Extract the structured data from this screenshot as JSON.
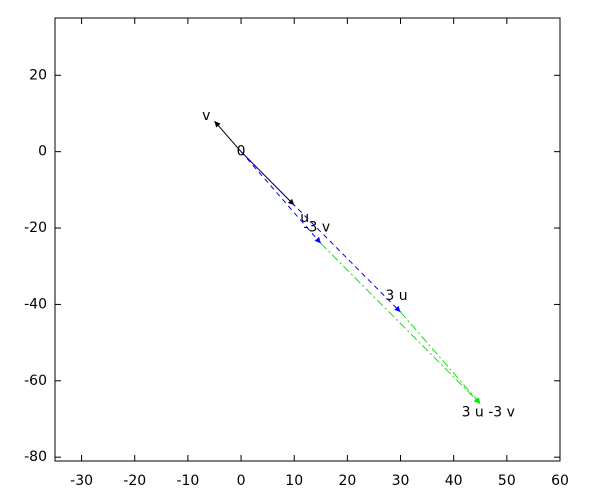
{
  "chart_data": {
    "type": "vector",
    "xlim": [
      -35,
      60
    ],
    "ylim": [
      -81,
      35
    ],
    "xticks": [
      -30,
      -20,
      -10,
      0,
      10,
      20,
      30,
      40,
      50,
      60
    ],
    "yticks": [
      -80,
      -60,
      -40,
      -20,
      0,
      20
    ],
    "origin_label": "0",
    "vectors": [
      {
        "name": "v",
        "x0": 0,
        "y0": 0,
        "x": -5,
        "y": 8,
        "color": "#000000",
        "dash": "none"
      },
      {
        "name": "u",
        "x0": 0,
        "y0": 0,
        "x": 10,
        "y": -14,
        "color": "#000000",
        "dash": "none"
      },
      {
        "name": "-3 v",
        "x0": 0,
        "y0": 0,
        "x": 15,
        "y": -24,
        "color": "#0000ff",
        "dash": "5 4"
      },
      {
        "name": "3 u",
        "x0": 0,
        "y0": 0,
        "x": 30,
        "y": -42,
        "color": "#0000ff",
        "dash": "5 4"
      },
      {
        "name": "3 u -3 v",
        "x0": 15,
        "y0": -24,
        "x": 45,
        "y": -66,
        "color": "#00ee00",
        "dash": "8 3 2 3"
      }
    ],
    "extra_segments": [
      {
        "x0": 30,
        "y0": -42,
        "x": 45,
        "y": -66,
        "color": "#00ee00",
        "dash": "8 3 2 3"
      }
    ]
  }
}
